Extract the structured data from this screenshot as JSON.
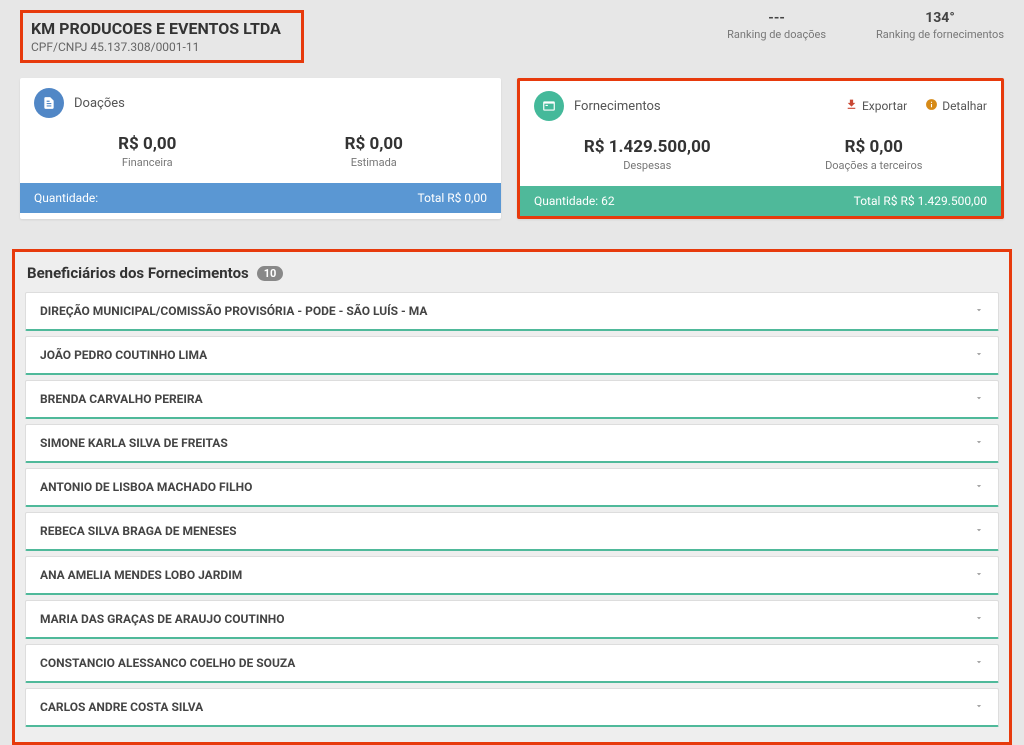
{
  "company": {
    "name": "KM PRODUCOES E EVENTOS LTDA",
    "id_label": "CPF/CNPJ 45.137.308/0001-11"
  },
  "rankings": {
    "donations": {
      "value": "---",
      "label": "Ranking de doações"
    },
    "supplies": {
      "value": "134°",
      "label": "Ranking de fornecimentos"
    }
  },
  "doacoes": {
    "title": "Doações",
    "financial": {
      "value": "R$ 0,00",
      "label": "Financeira"
    },
    "estimated": {
      "value": "R$ 0,00",
      "label": "Estimada"
    },
    "footer_qty": "Quantidade:",
    "footer_total": "Total R$ 0,00"
  },
  "fornecimentos": {
    "title": "Fornecimentos",
    "export_label": "Exportar",
    "detail_label": "Detalhar",
    "expenses": {
      "value": "R$ 1.429.500,00",
      "label": "Despesas"
    },
    "third_party": {
      "value": "R$ 0,00",
      "label": "Doações a terceiros"
    },
    "footer_qty": "Quantidade: 62",
    "footer_total": "Total R$ R$ 1.429.500,00"
  },
  "beneficiaries": {
    "title": "Beneficiários dos Fornecimentos",
    "count": "10",
    "items": [
      "DIREÇÃO MUNICIPAL/COMISSÃO PROVISÓRIA - PODE - SÃO LUÍS - MA",
      "JOÃO PEDRO COUTINHO LIMA",
      "BRENDA CARVALHO PEREIRA",
      "SIMONE KARLA SILVA DE FREITAS",
      "ANTONIO DE LISBOA MACHADO FILHO",
      "REBECA SILVA BRAGA DE MENESES",
      "ANA AMELIA MENDES LOBO JARDIM",
      "MARIA DAS GRAÇAS DE ARAUJO COUTINHO",
      "CONSTANCIO ALESSANCO COELHO DE SOUZA",
      "CARLOS ANDRE COSTA SILVA"
    ]
  },
  "colors": {
    "accent_blue": "#5a97d3",
    "accent_green": "#4fb99a",
    "highlight_border": "#e73a0c"
  }
}
